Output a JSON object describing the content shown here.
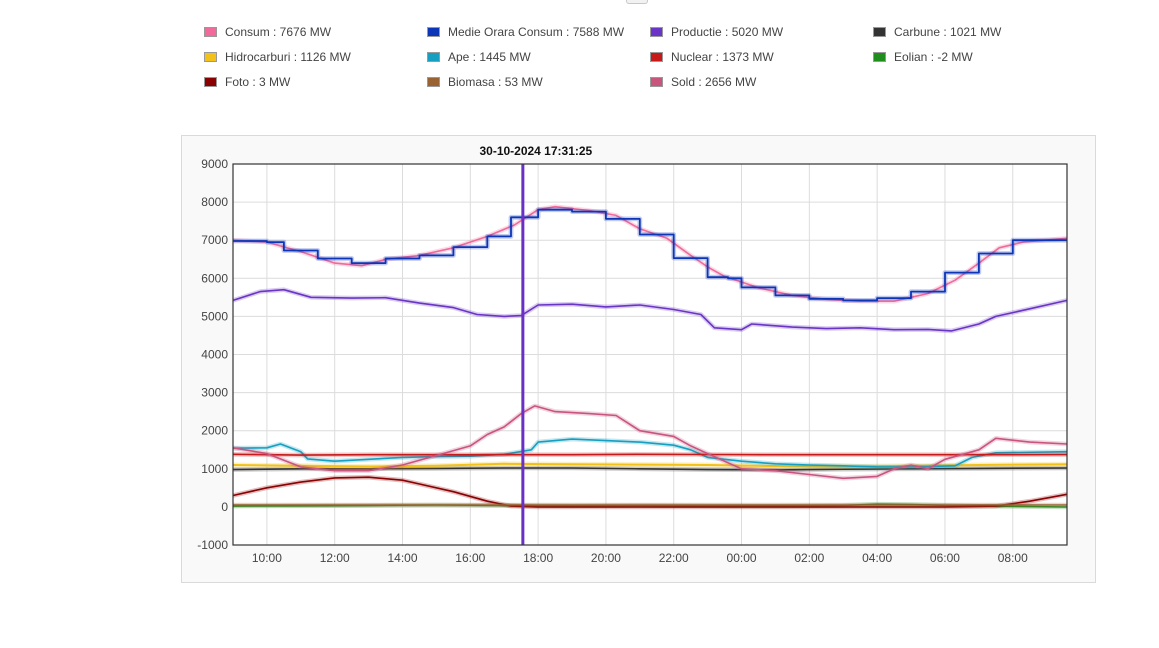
{
  "legend": [
    {
      "label": "Consum : 7676 MW",
      "color": "#f06a9b"
    },
    {
      "label": "Medie Orara Consum : 7588 MW",
      "color": "#0c35b8"
    },
    {
      "label": "Productie : 5020 MW",
      "color": "#6a35c6"
    },
    {
      "label": "Carbune : 1021 MW",
      "color": "#333333"
    },
    {
      "label": "Hidrocarburi : 1126 MW",
      "color": "#f2c21a"
    },
    {
      "label": "Ape : 1445 MW",
      "color": "#169fc0"
    },
    {
      "label": "Nuclear : 1373 MW",
      "color": "#c61a1a"
    },
    {
      "label": "Eolian : -2 MW",
      "color": "#1e8f1e"
    },
    {
      "label": "Foto : 3 MW",
      "color": "#8b0000"
    },
    {
      "label": "Biomasa : 53 MW",
      "color": "#9a6232"
    },
    {
      "label": "Sold : 2656 MW",
      "color": "#c8557e"
    }
  ],
  "chart_data": {
    "type": "line",
    "timestamp": "30-10-2024 17:31:25",
    "cursor_hour": 17.55,
    "xlim": [
      9,
      33.6
    ],
    "ylim": [
      -1000,
      9000
    ],
    "y_ticks": [
      "9000",
      "8000",
      "7000",
      "6000",
      "5000",
      "4000",
      "3000",
      "2000",
      "1000",
      "0",
      "-1000"
    ],
    "x_ticks": [
      {
        "label": "10:00",
        "x": 10
      },
      {
        "label": "12:00",
        "x": 12
      },
      {
        "label": "14:00",
        "x": 14
      },
      {
        "label": "16:00",
        "x": 16
      },
      {
        "label": "18:00",
        "x": 18
      },
      {
        "label": "20:00",
        "x": 20
      },
      {
        "label": "22:00",
        "x": 22
      },
      {
        "label": "00:00",
        "x": 24
      },
      {
        "label": "02:00",
        "x": 26
      },
      {
        "label": "04:00",
        "x": 28
      },
      {
        "label": "06:00",
        "x": 30
      },
      {
        "label": "08:00",
        "x": 32
      }
    ],
    "grid": true,
    "series": [
      {
        "name": "Consum",
        "color": "#f06a9b",
        "width": 1.6,
        "points": [
          [
            9,
            7000
          ],
          [
            10,
            6950
          ],
          [
            11,
            6700
          ],
          [
            12,
            6400
          ],
          [
            12.8,
            6330
          ],
          [
            13.5,
            6500
          ],
          [
            14.5,
            6600
          ],
          [
            15.5,
            6800
          ],
          [
            16.5,
            7100
          ],
          [
            17.3,
            7400
          ],
          [
            18,
            7800
          ],
          [
            18.5,
            7880
          ],
          [
            19.5,
            7780
          ],
          [
            20.3,
            7650
          ],
          [
            21,
            7300
          ],
          [
            21.8,
            7050
          ],
          [
            22.5,
            6600
          ],
          [
            23,
            6300
          ],
          [
            23.5,
            6050
          ],
          [
            24.5,
            5750
          ],
          [
            25.5,
            5550
          ],
          [
            26.5,
            5450
          ],
          [
            27.5,
            5400
          ],
          [
            28.5,
            5400
          ],
          [
            29.5,
            5600
          ],
          [
            30.3,
            5950
          ],
          [
            31,
            6400
          ],
          [
            31.6,
            6800
          ],
          [
            32.3,
            6950
          ],
          [
            33.6,
            7050
          ]
        ]
      },
      {
        "name": "Medie Orara Consum",
        "color": "#0c35b8",
        "width": 1.8,
        "step": true,
        "points": [
          [
            9,
            6980
          ],
          [
            10,
            6950
          ],
          [
            10.5,
            6730
          ],
          [
            11.5,
            6520
          ],
          [
            12.5,
            6400
          ],
          [
            13.5,
            6520
          ],
          [
            14.5,
            6600
          ],
          [
            15.5,
            6820
          ],
          [
            16.5,
            7100
          ],
          [
            17.2,
            7600
          ],
          [
            18,
            7800
          ],
          [
            19,
            7750
          ],
          [
            20,
            7560
          ],
          [
            21,
            7150
          ],
          [
            22,
            6530
          ],
          [
            23,
            6030
          ],
          [
            23.6,
            6000
          ],
          [
            24,
            5760
          ],
          [
            25,
            5550
          ],
          [
            26,
            5460
          ],
          [
            27,
            5420
          ],
          [
            28,
            5480
          ],
          [
            29,
            5650
          ],
          [
            30,
            6150
          ],
          [
            31,
            6650
          ],
          [
            32,
            7000
          ],
          [
            33.6,
            7000
          ]
        ]
      },
      {
        "name": "Productie",
        "color": "#6a35c6",
        "width": 1.6,
        "points": [
          [
            9,
            5420
          ],
          [
            9.8,
            5650
          ],
          [
            10.5,
            5700
          ],
          [
            11.3,
            5500
          ],
          [
            12.5,
            5480
          ],
          [
            13.5,
            5490
          ],
          [
            14.5,
            5350
          ],
          [
            15.5,
            5230
          ],
          [
            16.2,
            5050
          ],
          [
            17,
            5000
          ],
          [
            17.5,
            5020
          ],
          [
            18,
            5300
          ],
          [
            19,
            5320
          ],
          [
            20,
            5250
          ],
          [
            21,
            5300
          ],
          [
            22,
            5180
          ],
          [
            22.8,
            5050
          ],
          [
            23.2,
            4700
          ],
          [
            24,
            4650
          ],
          [
            24.3,
            4800
          ],
          [
            25.5,
            4720
          ],
          [
            26.5,
            4680
          ],
          [
            27.5,
            4700
          ],
          [
            28.5,
            4650
          ],
          [
            29.5,
            4660
          ],
          [
            30.2,
            4620
          ],
          [
            31,
            4800
          ],
          [
            31.5,
            5000
          ],
          [
            32.5,
            5200
          ],
          [
            33.6,
            5420
          ]
        ]
      },
      {
        "name": "Carbune",
        "color": "#333333",
        "width": 1.6,
        "points": [
          [
            9,
            980
          ],
          [
            11,
            1000
          ],
          [
            13,
            1000
          ],
          [
            15,
            1010
          ],
          [
            17,
            1020
          ],
          [
            19,
            1020
          ],
          [
            21,
            1000
          ],
          [
            23,
            980
          ],
          [
            25,
            970
          ],
          [
            27,
            990
          ],
          [
            29,
            1000
          ],
          [
            31,
            1010
          ],
          [
            33.6,
            1020
          ]
        ]
      },
      {
        "name": "Hidrocarburi",
        "color": "#f2c21a",
        "width": 2,
        "points": [
          [
            9,
            1100
          ],
          [
            11,
            1080
          ],
          [
            13,
            1060
          ],
          [
            15,
            1080
          ],
          [
            17,
            1130
          ],
          [
            19,
            1120
          ],
          [
            21,
            1110
          ],
          [
            23,
            1100
          ],
          [
            25,
            1070
          ],
          [
            27,
            1060
          ],
          [
            29,
            1080
          ],
          [
            31,
            1100
          ],
          [
            33.6,
            1120
          ]
        ]
      },
      {
        "name": "Ape",
        "color": "#169fc0",
        "width": 1.6,
        "points": [
          [
            9,
            1540
          ],
          [
            10,
            1550
          ],
          [
            10.4,
            1650
          ],
          [
            11,
            1450
          ],
          [
            11.2,
            1260
          ],
          [
            12,
            1200
          ],
          [
            13,
            1250
          ],
          [
            14,
            1300
          ],
          [
            15,
            1320
          ],
          [
            16,
            1330
          ],
          [
            17,
            1380
          ],
          [
            17.8,
            1500
          ],
          [
            18,
            1700
          ],
          [
            19,
            1780
          ],
          [
            20,
            1740
          ],
          [
            21,
            1700
          ],
          [
            22,
            1620
          ],
          [
            22.5,
            1500
          ],
          [
            23,
            1300
          ],
          [
            24,
            1200
          ],
          [
            25,
            1130
          ],
          [
            26,
            1100
          ],
          [
            27,
            1080
          ],
          [
            28,
            1050
          ],
          [
            29,
            1050
          ],
          [
            30.3,
            1080
          ],
          [
            30.8,
            1300
          ],
          [
            31.5,
            1420
          ],
          [
            33.6,
            1450
          ]
        ]
      },
      {
        "name": "Nuclear",
        "color": "#c61a1a",
        "width": 1.6,
        "points": [
          [
            9,
            1380
          ],
          [
            11,
            1360
          ],
          [
            13,
            1370
          ],
          [
            15,
            1370
          ],
          [
            17,
            1370
          ],
          [
            19,
            1370
          ],
          [
            21,
            1380
          ],
          [
            23,
            1375
          ],
          [
            25,
            1370
          ],
          [
            27,
            1370
          ],
          [
            29,
            1370
          ],
          [
            31,
            1370
          ],
          [
            33.6,
            1373
          ]
        ]
      },
      {
        "name": "Eolian",
        "color": "#1e8f1e",
        "width": 1.6,
        "points": [
          [
            9,
            20
          ],
          [
            11,
            30
          ],
          [
            13,
            40
          ],
          [
            15,
            50
          ],
          [
            17,
            40
          ],
          [
            19,
            30
          ],
          [
            21,
            40
          ],
          [
            23,
            30
          ],
          [
            25,
            20
          ],
          [
            27,
            40
          ],
          [
            28,
            70
          ],
          [
            29,
            60
          ],
          [
            31,
            20
          ],
          [
            33.6,
            -2
          ]
        ]
      },
      {
        "name": "Foto",
        "color": "#8b0000",
        "width": 1.6,
        "points": [
          [
            9,
            300
          ],
          [
            10,
            500
          ],
          [
            11,
            650
          ],
          [
            12,
            760
          ],
          [
            13,
            780
          ],
          [
            14,
            700
          ],
          [
            14.5,
            600
          ],
          [
            15.5,
            400
          ],
          [
            16.5,
            150
          ],
          [
            17.2,
            20
          ],
          [
            18,
            0
          ],
          [
            25,
            0
          ],
          [
            30,
            0
          ],
          [
            31.5,
            20
          ],
          [
            32.5,
            150
          ],
          [
            33.6,
            330
          ]
        ]
      },
      {
        "name": "Biomasa",
        "color": "#9a6232",
        "width": 1.4,
        "points": [
          [
            9,
            50
          ],
          [
            13,
            52
          ],
          [
            17,
            53
          ],
          [
            21,
            53
          ],
          [
            25,
            52
          ],
          [
            29,
            53
          ],
          [
            33.6,
            53
          ]
        ]
      },
      {
        "name": "Sold",
        "color": "#c8557e",
        "width": 1.6,
        "points": [
          [
            9,
            1550
          ],
          [
            10,
            1400
          ],
          [
            11,
            1050
          ],
          [
            12,
            950
          ],
          [
            13,
            950
          ],
          [
            14,
            1100
          ],
          [
            15,
            1350
          ],
          [
            16,
            1600
          ],
          [
            16.5,
            1900
          ],
          [
            17,
            2100
          ],
          [
            17.5,
            2450
          ],
          [
            17.9,
            2650
          ],
          [
            18.5,
            2500
          ],
          [
            19.5,
            2450
          ],
          [
            20.3,
            2400
          ],
          [
            21,
            2000
          ],
          [
            22,
            1850
          ],
          [
            22.5,
            1600
          ],
          [
            23,
            1400
          ],
          [
            24,
            1000
          ],
          [
            25,
            950
          ],
          [
            26,
            850
          ],
          [
            27,
            750
          ],
          [
            28,
            800
          ],
          [
            28.5,
            1000
          ],
          [
            29,
            1100
          ],
          [
            29.5,
            1000
          ],
          [
            30,
            1250
          ],
          [
            31,
            1500
          ],
          [
            31.5,
            1800
          ],
          [
            32.5,
            1700
          ],
          [
            33.6,
            1650
          ]
        ]
      }
    ]
  }
}
